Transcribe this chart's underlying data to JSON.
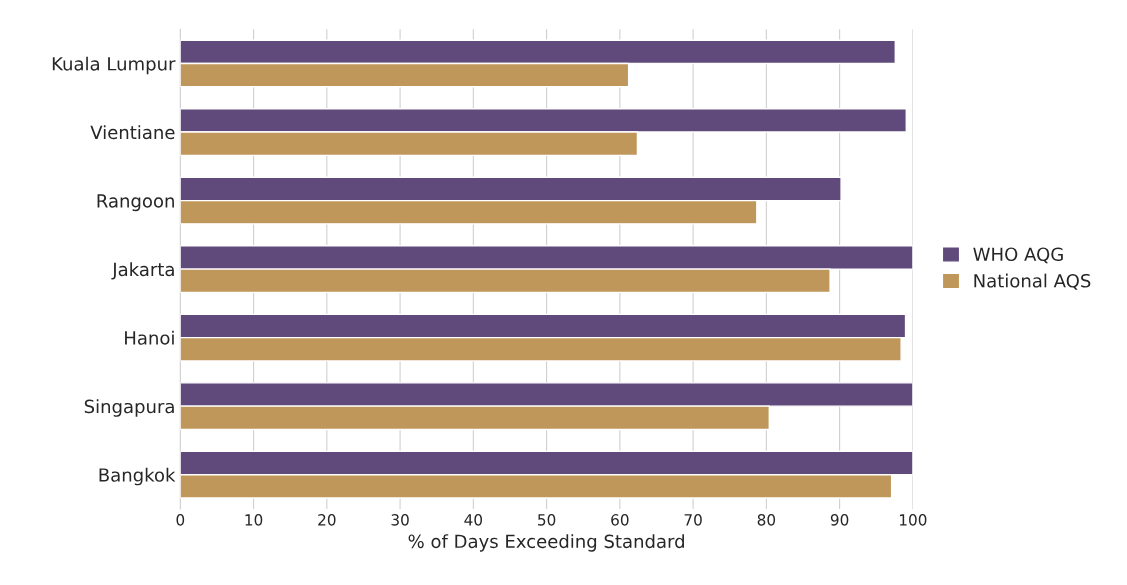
{
  "chart_data": {
    "type": "bar",
    "orientation": "horizontal",
    "xlabel": "% of Days Exceeding Standard",
    "categories": [
      "Kuala Lumpur",
      "Vientiane",
      "Rangoon",
      "Jakarta",
      "Hanoi",
      "Singapura",
      "Bangkok"
    ],
    "series": [
      {
        "name": "WHO AQG",
        "color": "#604a7b",
        "values": [
          97.6,
          99.1,
          90.2,
          100,
          99.0,
          100,
          100
        ]
      },
      {
        "name": "National AQS",
        "color": "#c0975a",
        "values": [
          61.2,
          62.4,
          78.7,
          88.7,
          98.4,
          80.4,
          97.1
        ]
      }
    ],
    "xlim": [
      0,
      100
    ],
    "xticks": [
      0,
      10,
      20,
      30,
      40,
      50,
      60,
      70,
      80,
      90,
      100
    ],
    "grid": "x",
    "legend": "right"
  }
}
